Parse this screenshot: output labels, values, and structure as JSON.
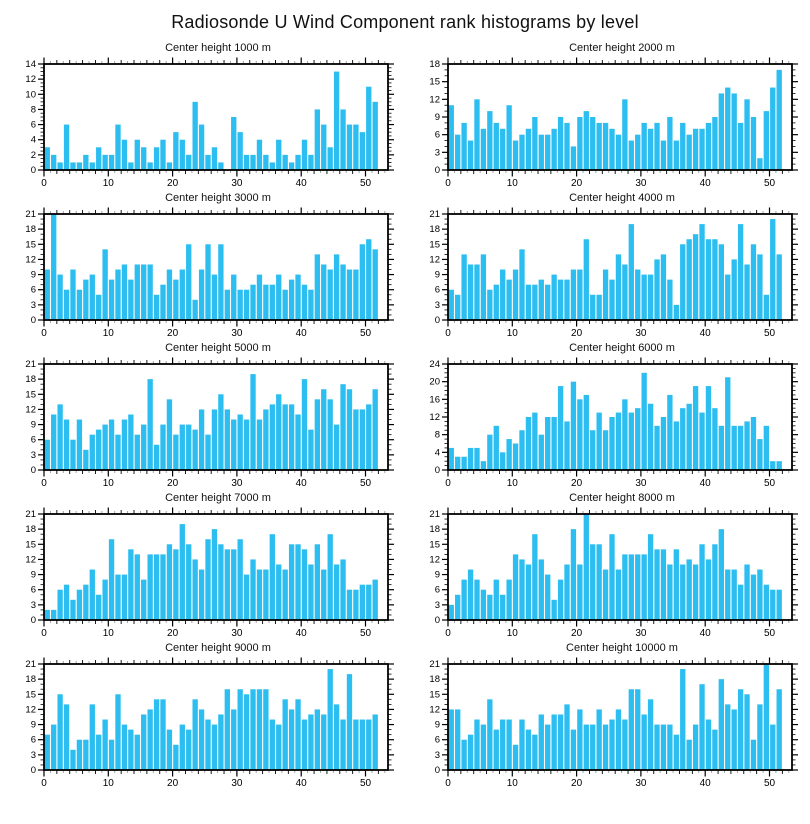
{
  "page_title": "Radiosonde U Wind Component rank histograms by level",
  "colors": {
    "bar_fill": "#2CBEF0",
    "axis": "#000000",
    "minor_tick_gray": "#9a9a9a"
  },
  "chart_data": [
    {
      "type": "bar",
      "title": "Center height 1000 m",
      "ylim": [
        0,
        14
      ],
      "ytick": 2,
      "xlim": [
        0,
        53.5
      ],
      "xticks": [
        0,
        10,
        20,
        30,
        40,
        50
      ],
      "values": [
        3,
        2,
        1,
        6,
        1,
        1,
        2,
        1,
        3,
        2,
        2,
        6,
        4,
        1,
        4,
        3,
        1,
        3,
        4,
        1,
        5,
        4,
        2,
        9,
        6,
        2,
        3,
        1,
        0,
        7,
        5,
        2,
        2,
        4,
        2,
        1,
        4,
        2,
        1,
        2,
        4,
        2,
        8,
        6,
        3,
        13,
        8,
        6,
        6,
        5,
        11,
        9
      ]
    },
    {
      "type": "bar",
      "title": "Center height 2000 m",
      "ylim": [
        0,
        18
      ],
      "ytick": 3,
      "xlim": [
        0,
        53.5
      ],
      "xticks": [
        0,
        10,
        20,
        30,
        40,
        50
      ],
      "values": [
        11,
        6,
        8,
        5,
        12,
        7,
        10,
        8,
        7,
        11,
        5,
        6,
        7,
        9,
        6,
        6,
        7,
        9,
        8,
        4,
        9,
        10,
        9,
        8,
        8,
        7,
        6,
        12,
        5,
        6,
        8,
        7,
        8,
        5,
        9,
        5,
        8,
        6,
        7,
        7,
        8,
        9,
        13,
        14,
        13,
        8,
        12,
        9,
        2,
        10,
        14,
        17
      ]
    },
    {
      "type": "bar",
      "title": "Center height 3000 m",
      "ylim": [
        0,
        21
      ],
      "ytick": 3,
      "xlim": [
        0,
        53.5
      ],
      "xticks": [
        0,
        10,
        20,
        30,
        40,
        50
      ],
      "values": [
        10,
        21,
        9,
        6,
        10,
        6,
        8,
        9,
        5,
        14,
        8,
        10,
        11,
        8,
        11,
        11,
        11,
        5,
        7,
        10,
        8,
        10,
        15,
        4,
        10,
        15,
        9,
        15,
        6,
        9,
        6,
        6,
        7,
        9,
        7,
        7,
        9,
        6,
        8,
        9,
        7,
        6,
        13,
        11,
        10,
        13,
        11,
        10,
        10,
        15,
        16,
        14
      ]
    },
    {
      "type": "bar",
      "title": "Center height 4000 m",
      "ylim": [
        0,
        21
      ],
      "ytick": 3,
      "xlim": [
        0,
        53.5
      ],
      "xticks": [
        0,
        10,
        20,
        30,
        40,
        50
      ],
      "values": [
        6,
        5,
        13,
        11,
        11,
        13,
        6,
        7,
        10,
        8,
        10,
        14,
        7,
        7,
        8,
        7,
        9,
        8,
        8,
        10,
        10,
        16,
        5,
        5,
        10,
        8,
        13,
        11,
        19,
        10,
        9,
        9,
        12,
        13,
        8,
        3,
        15,
        16,
        17,
        19,
        16,
        16,
        15,
        9,
        12,
        19,
        11,
        15,
        13,
        5,
        20,
        13
      ]
    },
    {
      "type": "bar",
      "title": "Center height 5000 m",
      "ylim": [
        0,
        21
      ],
      "ytick": 3,
      "xlim": [
        0,
        53.5
      ],
      "xticks": [
        0,
        10,
        20,
        30,
        40,
        50
      ],
      "values": [
        6,
        11,
        13,
        10,
        6,
        10,
        4,
        7,
        8,
        9,
        10,
        7,
        10,
        11,
        7,
        9,
        18,
        5,
        9,
        14,
        7,
        9,
        9,
        8,
        12,
        7,
        12,
        15,
        12,
        10,
        11,
        10,
        19,
        10,
        12,
        13,
        15,
        13,
        13,
        11,
        18,
        8,
        14,
        16,
        14,
        9,
        17,
        16,
        12,
        12,
        13,
        16
      ]
    },
    {
      "type": "bar",
      "title": "Center height 6000 m",
      "ylim": [
        0,
        24
      ],
      "ytick": 4,
      "xlim": [
        0,
        53.5
      ],
      "xticks": [
        0,
        10,
        20,
        30,
        40,
        50
      ],
      "values": [
        5,
        3,
        3,
        5,
        5,
        2,
        8,
        10,
        4,
        7,
        6,
        9,
        12,
        13,
        8,
        12,
        12,
        19,
        11,
        20,
        16,
        17,
        9,
        13,
        9,
        12,
        13,
        16,
        13,
        14,
        22,
        15,
        10,
        12,
        17,
        11,
        14,
        15,
        19,
        13,
        19,
        14,
        10,
        21,
        10,
        10,
        11,
        12,
        7,
        10,
        2,
        2
      ]
    },
    {
      "type": "bar",
      "title": "Center height 7000 m",
      "ylim": [
        0,
        21
      ],
      "ytick": 3,
      "xlim": [
        0,
        53.5
      ],
      "xticks": [
        0,
        10,
        20,
        30,
        40,
        50
      ],
      "values": [
        2,
        2,
        6,
        7,
        4,
        6,
        7,
        10,
        5,
        8,
        16,
        9,
        9,
        14,
        13,
        8,
        13,
        13,
        13,
        15,
        14,
        19,
        15,
        12,
        10,
        16,
        18,
        15,
        14,
        14,
        16,
        9,
        12,
        10,
        10,
        17,
        11,
        10,
        15,
        15,
        14,
        11,
        15,
        10,
        17,
        11,
        12,
        6,
        6,
        7,
        7,
        8
      ]
    },
    {
      "type": "bar",
      "title": "Center height 8000 m",
      "ylim": [
        0,
        21
      ],
      "ytick": 3,
      "xlim": [
        0,
        53.5
      ],
      "xticks": [
        0,
        10,
        20,
        30,
        40,
        50
      ],
      "values": [
        3,
        5,
        8,
        10,
        8,
        6,
        5,
        8,
        5,
        8,
        13,
        12,
        11,
        17,
        12,
        9,
        4,
        8,
        11,
        18,
        11,
        21,
        15,
        15,
        10,
        17,
        10,
        13,
        13,
        13,
        13,
        17,
        14,
        14,
        11,
        14,
        11,
        12,
        11,
        15,
        12,
        15,
        18,
        10,
        10,
        7,
        11,
        9,
        10,
        7,
        6,
        6
      ]
    },
    {
      "type": "bar",
      "title": "Center height 9000 m",
      "ylim": [
        0,
        21
      ],
      "ytick": 3,
      "xlim": [
        0,
        53.5
      ],
      "xticks": [
        0,
        10,
        20,
        30,
        40,
        50
      ],
      "values": [
        7,
        9,
        15,
        13,
        4,
        6,
        6,
        13,
        7,
        10,
        6,
        15,
        9,
        8,
        7,
        11,
        12,
        14,
        14,
        8,
        5,
        9,
        8,
        14,
        12,
        10,
        9,
        11,
        16,
        12,
        16,
        15,
        16,
        16,
        16,
        10,
        9,
        14,
        12,
        14,
        10,
        11,
        12,
        11,
        20,
        13,
        10,
        19,
        10,
        10,
        10,
        11
      ]
    },
    {
      "type": "bar",
      "title": "Center height 10000 m",
      "ylim": [
        0,
        21
      ],
      "ytick": 3,
      "xlim": [
        0,
        53.5
      ],
      "xticks": [
        0,
        10,
        20,
        30,
        40,
        50
      ],
      "values": [
        12,
        12,
        6,
        7,
        10,
        9,
        14,
        8,
        10,
        10,
        5,
        10,
        8,
        7,
        11,
        9,
        11,
        11,
        13,
        8,
        12,
        9,
        9,
        12,
        9,
        10,
        12,
        10,
        16,
        16,
        11,
        14,
        9,
        9,
        9,
        7,
        20,
        6,
        9,
        17,
        10,
        8,
        18,
        13,
        12,
        16,
        15,
        6,
        13,
        21,
        9,
        16
      ]
    }
  ]
}
